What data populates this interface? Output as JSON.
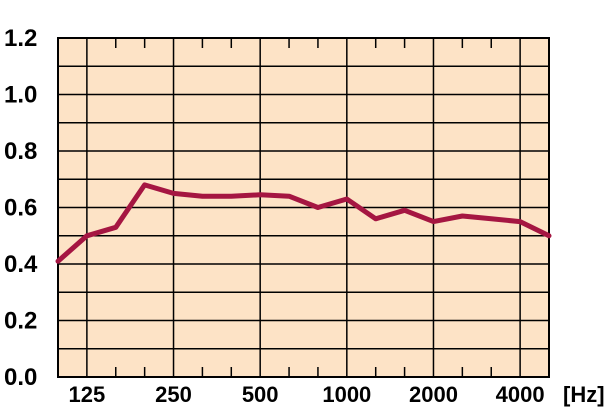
{
  "chart_data": {
    "type": "line",
    "title": "",
    "xlabel": "",
    "ylabel": "",
    "x_unit": "[Hz]",
    "x_points": [
      "100",
      "125",
      "160",
      "200",
      "250",
      "315",
      "400",
      "500",
      "630",
      "800",
      "1000",
      "1250",
      "1600",
      "2000",
      "2500",
      "3150",
      "4000",
      "5000"
    ],
    "x_tick_labels": [
      "125",
      "250",
      "500",
      "1000",
      "2000",
      "4000"
    ],
    "y_tick_labels": [
      "0.0",
      "0.2",
      "0.4",
      "0.6",
      "0.8",
      "1.0",
      "1.2"
    ],
    "ylim": [
      0,
      1.2
    ],
    "grid": true,
    "series": [
      {
        "values": [
          0.41,
          0.5,
          0.53,
          0.68,
          0.65,
          0.64,
          0.64,
          0.645,
          0.64,
          0.6,
          0.63,
          0.56,
          0.59,
          0.55,
          0.57,
          0.56,
          0.55,
          0.5
        ]
      }
    ],
    "colors": {
      "plot_background": "#fde3c6",
      "line": "#a51642",
      "grid": "#000000"
    }
  }
}
